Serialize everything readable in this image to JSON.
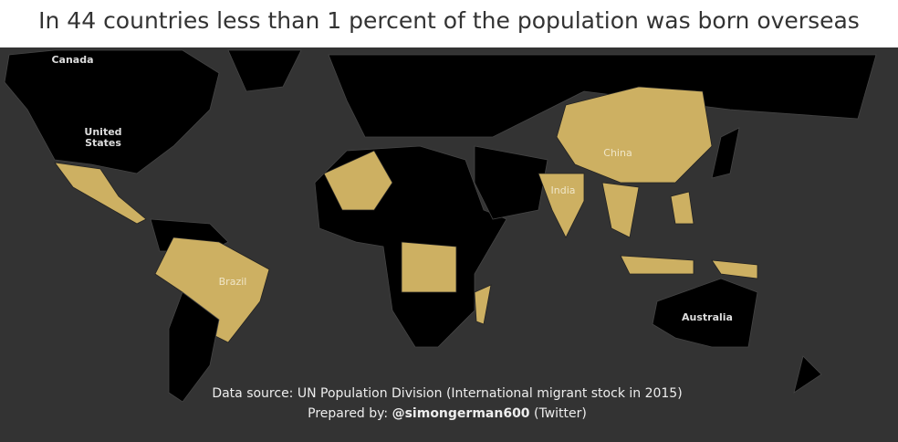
{
  "title": "In 44 countries less than 1 percent of the population was born overseas",
  "map": {
    "labels": [
      "Canada",
      "United States",
      "China",
      "India",
      "Brazil",
      "Australia"
    ]
  },
  "footer": {
    "source": "Data source: UN Population Division (International migrant stock in 2015)",
    "prepared_by": {
      "prefix": "Prepared by:",
      "handle": "@simongerman600",
      "suffix": "(Twitter)"
    }
  }
}
